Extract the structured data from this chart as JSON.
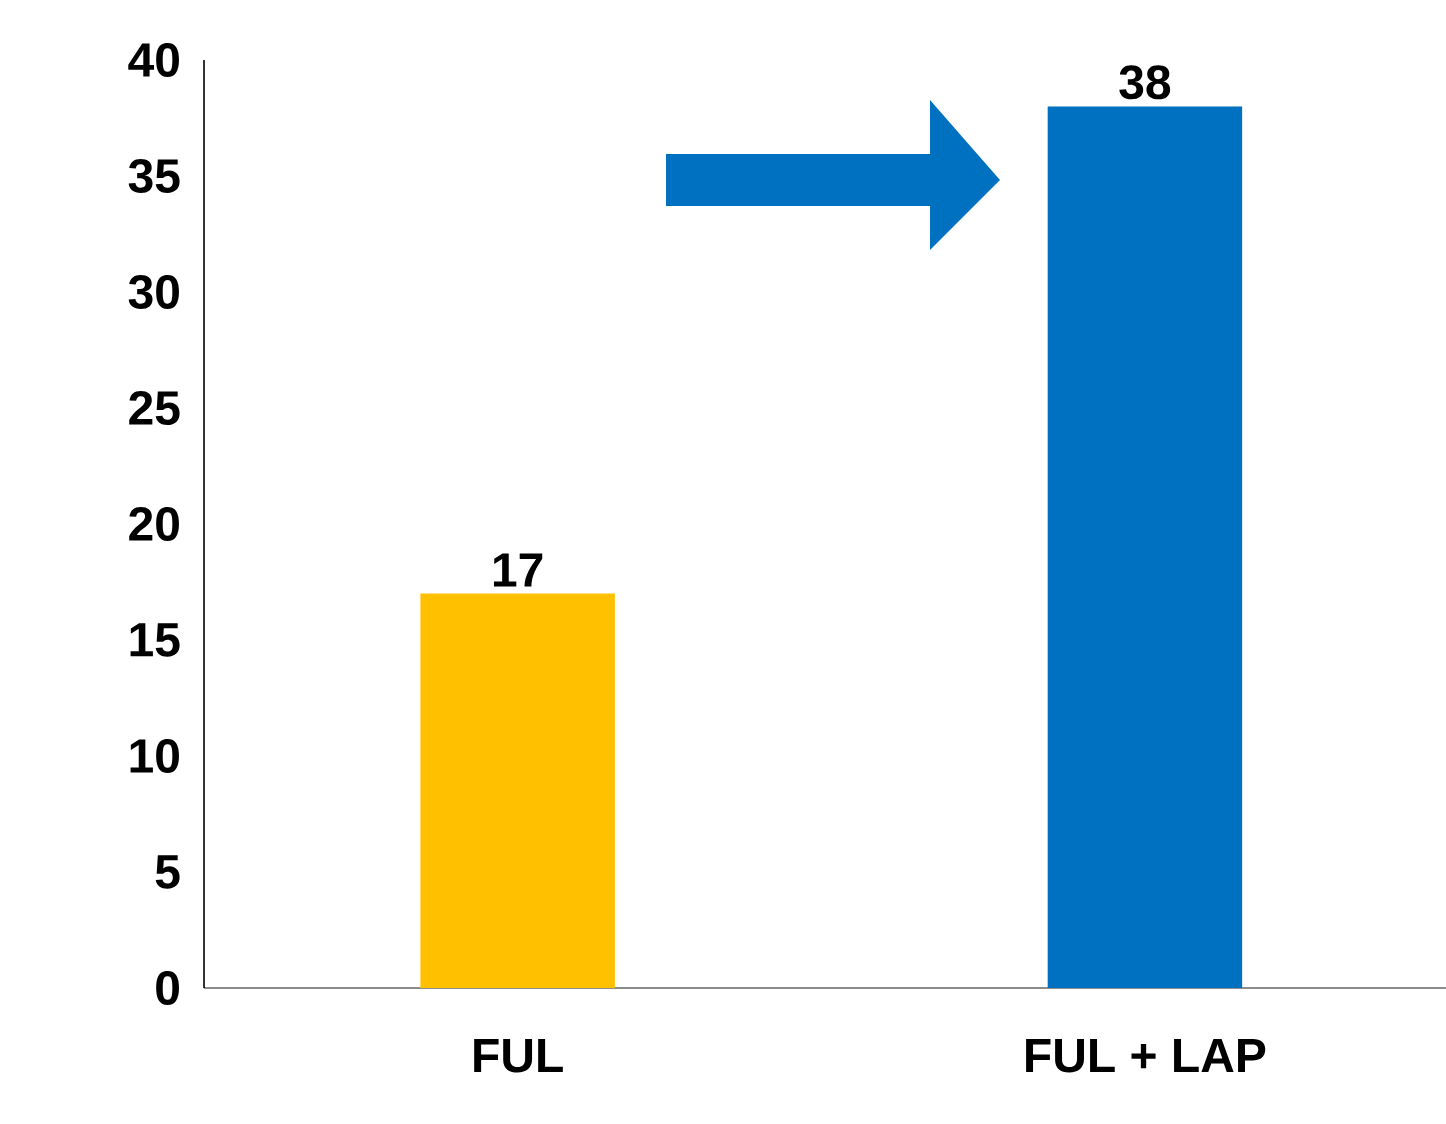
{
  "chart_data": {
    "type": "bar",
    "categories": [
      "FUL",
      "FUL + LAP"
    ],
    "values": [
      17,
      38
    ],
    "colors": [
      "#ffc000",
      "#0070c0"
    ],
    "ylim": [
      0,
      40
    ],
    "yticks": [
      0,
      5,
      10,
      15,
      20,
      25,
      30,
      35,
      40
    ],
    "data_labels": true,
    "grid": false
  }
}
